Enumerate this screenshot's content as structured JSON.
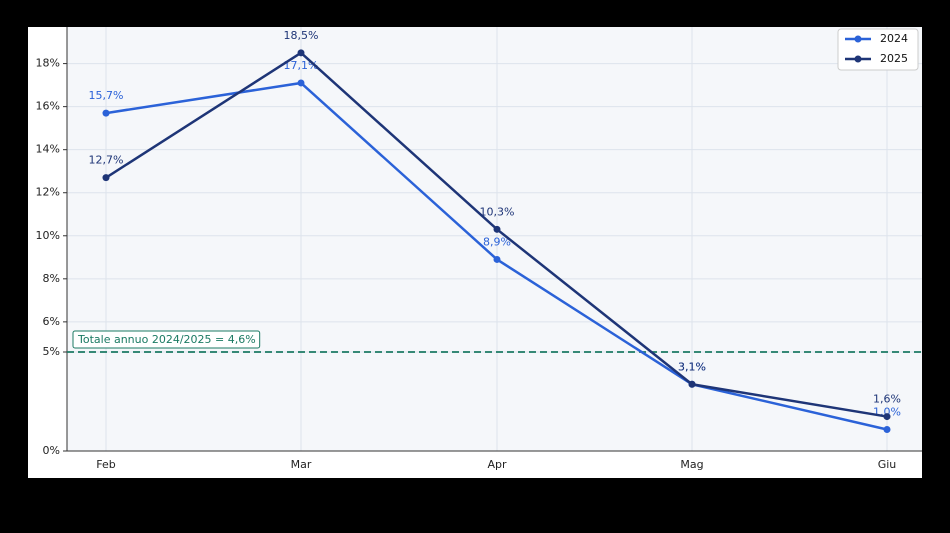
{
  "chart_data": {
    "type": "line",
    "categories": [
      "Feb",
      "Mar",
      "Apr",
      "Mag",
      "Giu"
    ],
    "series": [
      {
        "name": "2024",
        "color": "#2b62d8",
        "values": [
          15.7,
          17.1,
          8.9,
          3.1,
          1.0
        ],
        "value_labels": [
          "15,7%",
          "17,1%",
          "8,9%",
          "3,1%",
          "1,0%"
        ]
      },
      {
        "name": "2025",
        "color": "#1e3577",
        "values": [
          12.7,
          18.5,
          10.3,
          3.1,
          1.6
        ],
        "value_labels": [
          "12,7%",
          "18,5%",
          "10,3%",
          "3,1%",
          "1,6%"
        ]
      }
    ],
    "ylim": [
      0,
      19.7
    ],
    "yticks": [
      {
        "value": 0,
        "label": "0%"
      },
      {
        "value": 4.6,
        "label": "5%"
      },
      {
        "value": 6,
        "label": "6%"
      },
      {
        "value": 8,
        "label": "8%"
      },
      {
        "value": 10,
        "label": "10%"
      },
      {
        "value": 12,
        "label": "12%"
      },
      {
        "value": 14,
        "label": "14%"
      },
      {
        "value": 16,
        "label": "16%"
      },
      {
        "value": 18,
        "label": "18%"
      }
    ],
    "grid": true,
    "legend": "upper right",
    "reference_line": {
      "value": 4.6,
      "label": "Totale annuo 2024/2025 = 4,6%",
      "color": "#1b7a63"
    }
  }
}
